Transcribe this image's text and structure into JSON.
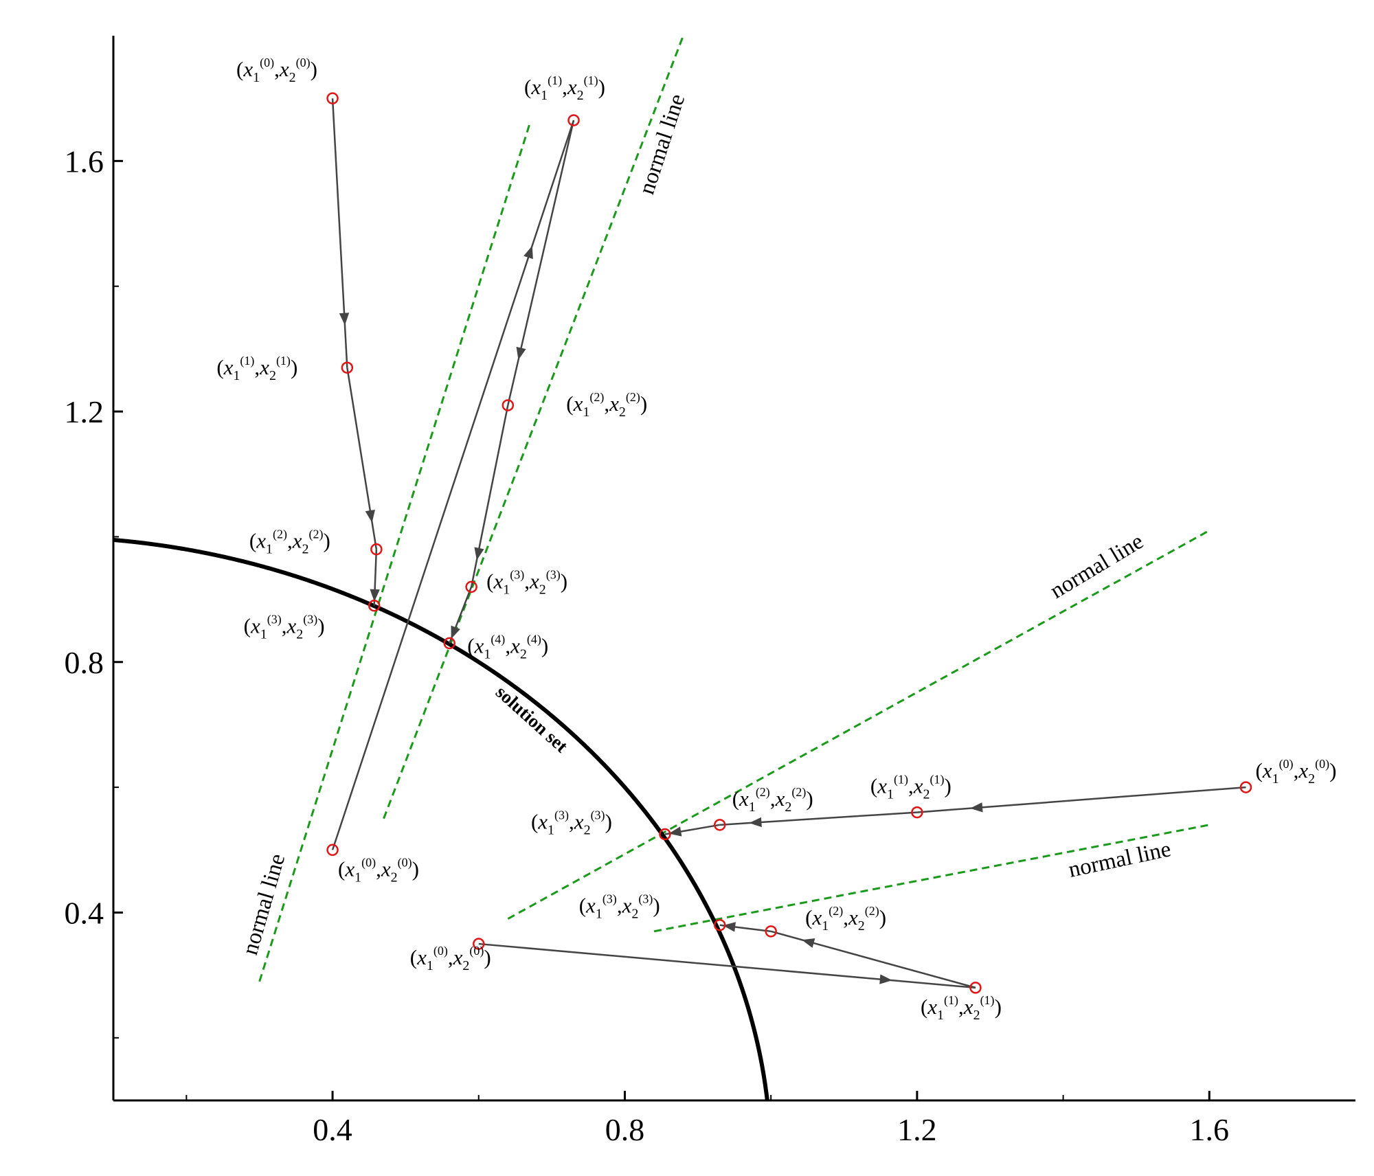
{
  "chart_data": {
    "type": "line",
    "xlim": [
      0.1,
      1.8
    ],
    "ylim": [
      0.1,
      1.8
    ],
    "x_ticks": [
      {
        "value": 0.4,
        "label": "0.4"
      },
      {
        "value": 0.8,
        "label": "0.8"
      },
      {
        "value": 1.2,
        "label": "1.2"
      },
      {
        "value": 1.6,
        "label": "1.6"
      }
    ],
    "x_minor_ticks": [
      0.2,
      0.6,
      1.0,
      1.4
    ],
    "y_ticks": [
      {
        "value": 0.4,
        "label": "0.4"
      },
      {
        "value": 0.8,
        "label": "0.8"
      },
      {
        "value": 1.2,
        "label": "1.2"
      },
      {
        "value": 1.6,
        "label": "1.6"
      }
    ],
    "y_minor_ticks": [
      0.2,
      0.6,
      1.0,
      1.4
    ],
    "grid": false,
    "solution_set": {
      "shape": "circle",
      "center": [
        0,
        0
      ],
      "radius": 1,
      "label": "solution set",
      "color": "#000000"
    },
    "normal_lines": {
      "color": "#1a9a1a",
      "label": "normal line",
      "lines": [
        {
          "from": [
            0.3,
            0.29
          ],
          "to": [
            0.67,
            1.66
          ]
        },
        {
          "from": [
            0.47,
            0.55
          ],
          "to": [
            0.88,
            1.8
          ]
        },
        {
          "from": [
            0.64,
            0.39
          ],
          "to": [
            1.6,
            1.01
          ]
        },
        {
          "from": [
            0.84,
            0.37
          ],
          "to": [
            1.6,
            0.54
          ]
        }
      ]
    },
    "labels_text": {
      "paren_open": "(",
      "paren_close": ")",
      "comma": ",",
      "x_var": "x",
      "sub1": "1",
      "sub2": "2"
    },
    "series": [
      {
        "points": [
          {
            "x": 0.4,
            "y": 1.7,
            "label": "(x1(0),x2(0))",
            "sup": "(0)"
          },
          {
            "x": 0.42,
            "y": 1.27,
            "label": "(x1(1),x2(1))",
            "sup": "(1)"
          },
          {
            "x": 0.46,
            "y": 0.98,
            "label": "(x1(2),x2(2))",
            "sup": "(2)"
          },
          {
            "x": 0.457,
            "y": 0.89,
            "label": "(x1(3),x2(3))",
            "sup": "(3)"
          }
        ]
      },
      {
        "points": [
          {
            "x": 0.4,
            "y": 0.5,
            "label": "(x1(0),x2(0))",
            "sup": "(0)"
          },
          {
            "x": 0.73,
            "y": 1.665,
            "label": "(x1(1),x2(1))",
            "sup": "(1)"
          },
          {
            "x": 0.64,
            "y": 1.21,
            "label": "(x1(2),x2(2))",
            "sup": "(2)"
          },
          {
            "x": 0.59,
            "y": 0.92,
            "label": "(x1(3),x2(3))",
            "sup": "(3)"
          },
          {
            "x": 0.56,
            "y": 0.83,
            "label": "(x1(4),x2(4))",
            "sup": "(4)"
          }
        ]
      },
      {
        "points": [
          {
            "x": 1.65,
            "y": 0.6,
            "label": "(x1(0),x2(0))",
            "sup": "(0)"
          },
          {
            "x": 1.2,
            "y": 0.56,
            "label": "(x1(1),x2(1))",
            "sup": "(1)"
          },
          {
            "x": 0.93,
            "y": 0.54,
            "label": "(x1(2),x2(2))",
            "sup": "(2)"
          },
          {
            "x": 0.855,
            "y": 0.525,
            "label": "(x1(3),x2(3))",
            "sup": "(3)"
          }
        ]
      },
      {
        "points": [
          {
            "x": 0.6,
            "y": 0.35,
            "label": "(x1(0),x2(0))",
            "sup": "(0)"
          },
          {
            "x": 1.28,
            "y": 0.28,
            "label": "(x1(1),x2(1))",
            "sup": "(1)"
          },
          {
            "x": 1.0,
            "y": 0.37,
            "label": "(x1(2),x2(2))",
            "sup": "(2)"
          },
          {
            "x": 0.93,
            "y": 0.38,
            "label": "(x1(3),x2(3))",
            "sup": "(3)"
          }
        ]
      }
    ]
  }
}
